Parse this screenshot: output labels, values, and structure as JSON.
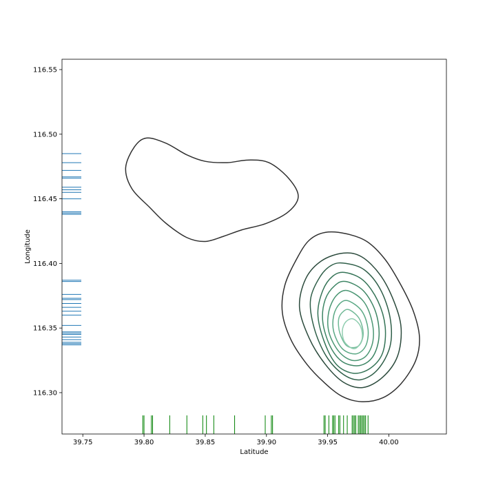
{
  "chart_data": {
    "type": "contour",
    "title": "",
    "xlabel": "Latitude",
    "ylabel": "Longitude",
    "xlim": [
      39.733,
      40.047
    ],
    "ylim": [
      116.268,
      116.558
    ],
    "xticks": [
      39.75,
      39.8,
      39.85,
      39.9,
      39.95,
      40.0
    ],
    "xtick_labels": [
      "39.75",
      "39.80",
      "39.85",
      "39.90",
      "39.95",
      "40.00"
    ],
    "yticks": [
      116.3,
      116.35,
      116.4,
      116.45,
      116.5,
      116.55
    ],
    "ytick_labels": [
      "116.30",
      "116.35",
      "116.40",
      "116.45",
      "116.50",
      "116.55"
    ],
    "grid": false,
    "contour_colors": [
      "#2f2f2f",
      "#2b4a3c",
      "#2e5e48",
      "#347356",
      "#3d8564",
      "#4a9673",
      "#5aa884",
      "#71b997",
      "#90cdb0"
    ],
    "contours": [
      {
        "level": 1,
        "points": [
          [
            39.802,
            116.497
          ],
          [
            39.818,
            116.493
          ],
          [
            39.835,
            116.484
          ],
          [
            39.85,
            116.479
          ],
          [
            39.868,
            116.478
          ],
          [
            39.885,
            116.48
          ],
          [
            39.902,
            116.478
          ],
          [
            39.918,
            116.466
          ],
          [
            39.926,
            116.452
          ],
          [
            39.918,
            116.44
          ],
          [
            39.9,
            116.431
          ],
          [
            39.88,
            116.426
          ],
          [
            39.865,
            116.421
          ],
          [
            39.85,
            116.417
          ],
          [
            39.835,
            116.42
          ],
          [
            39.818,
            116.431
          ],
          [
            39.805,
            116.443
          ],
          [
            39.79,
            116.458
          ],
          [
            39.785,
            116.474
          ],
          [
            39.792,
            116.49
          ]
        ]
      },
      {
        "level": 1,
        "points": [
          [
            39.948,
            116.424
          ],
          [
            39.965,
            116.423
          ],
          [
            39.982,
            116.417
          ],
          [
            39.997,
            116.403
          ],
          [
            40.01,
            116.383
          ],
          [
            40.02,
            116.363
          ],
          [
            40.025,
            116.343
          ],
          [
            40.022,
            116.325
          ],
          [
            40.01,
            116.307
          ],
          [
            39.995,
            116.296
          ],
          [
            39.978,
            116.293
          ],
          [
            39.962,
            116.297
          ],
          [
            39.947,
            116.308
          ],
          [
            39.933,
            116.322
          ],
          [
            39.92,
            116.341
          ],
          [
            39.913,
            116.362
          ],
          [
            39.915,
            116.383
          ],
          [
            39.925,
            116.404
          ],
          [
            39.935,
            116.418
          ]
        ]
      },
      {
        "level": 2,
        "points": [
          [
            39.963,
            116.408
          ],
          [
            39.978,
            116.405
          ],
          [
            39.993,
            116.391
          ],
          [
            40.004,
            116.371
          ],
          [
            40.01,
            116.35
          ],
          [
            40.007,
            116.328
          ],
          [
            39.995,
            116.312
          ],
          [
            39.979,
            116.304
          ],
          [
            39.963,
            116.308
          ],
          [
            39.948,
            116.322
          ],
          [
            39.935,
            116.342
          ],
          [
            39.927,
            116.366
          ],
          [
            39.932,
            116.388
          ],
          [
            39.945,
            116.402
          ]
        ]
      },
      {
        "level": 3,
        "points": [
          [
            39.965,
            116.4
          ],
          [
            39.98,
            116.395
          ],
          [
            39.993,
            116.38
          ],
          [
            40.001,
            116.358
          ],
          [
            40.001,
            116.336
          ],
          [
            39.991,
            116.318
          ],
          [
            39.977,
            116.31
          ],
          [
            39.963,
            116.314
          ],
          [
            39.949,
            116.328
          ],
          [
            39.939,
            116.35
          ],
          [
            39.936,
            116.372
          ],
          [
            39.944,
            116.39
          ],
          [
            39.954,
            116.399
          ]
        ]
      },
      {
        "level": 4,
        "points": [
          [
            39.964,
            116.393
          ],
          [
            39.979,
            116.387
          ],
          [
            39.991,
            116.371
          ],
          [
            39.997,
            116.351
          ],
          [
            39.995,
            116.331
          ],
          [
            39.985,
            116.319
          ],
          [
            39.971,
            116.315
          ],
          [
            39.957,
            116.322
          ],
          [
            39.947,
            116.34
          ],
          [
            39.942,
            116.361
          ],
          [
            39.946,
            116.379
          ],
          [
            39.954,
            116.39
          ]
        ]
      },
      {
        "level": 5,
        "points": [
          [
            39.965,
            116.386
          ],
          [
            39.979,
            116.379
          ],
          [
            39.989,
            116.363
          ],
          [
            39.992,
            116.344
          ],
          [
            39.987,
            116.328
          ],
          [
            39.976,
            116.321
          ],
          [
            39.962,
            116.324
          ],
          [
            39.952,
            116.336
          ],
          [
            39.946,
            116.355
          ],
          [
            39.948,
            116.372
          ],
          [
            39.956,
            116.383
          ]
        ]
      },
      {
        "level": 6,
        "points": [
          [
            39.966,
            116.379
          ],
          [
            39.979,
            116.371
          ],
          [
            39.986,
            116.356
          ],
          [
            39.987,
            116.34
          ],
          [
            39.981,
            116.328
          ],
          [
            39.97,
            116.325
          ],
          [
            39.959,
            116.332
          ],
          [
            39.951,
            116.347
          ],
          [
            39.951,
            116.363
          ],
          [
            39.957,
            116.375
          ]
        ]
      },
      {
        "level": 7,
        "points": [
          [
            39.967,
            116.371
          ],
          [
            39.978,
            116.363
          ],
          [
            39.983,
            116.349
          ],
          [
            39.981,
            116.336
          ],
          [
            39.973,
            116.33
          ],
          [
            39.962,
            116.334
          ],
          [
            39.955,
            116.347
          ],
          [
            39.955,
            116.36
          ],
          [
            39.96,
            116.369
          ]
        ]
      },
      {
        "level": 8,
        "points": [
          [
            39.968,
            116.364
          ],
          [
            39.976,
            116.357
          ],
          [
            39.979,
            116.345
          ],
          [
            39.975,
            116.336
          ],
          [
            39.966,
            116.336
          ],
          [
            39.96,
            116.346
          ],
          [
            39.959,
            116.357
          ],
          [
            39.963,
            116.363
          ]
        ]
      },
      {
        "level": 9,
        "points": [
          [
            39.971,
            116.357
          ],
          [
            39.977,
            116.351
          ],
          [
            39.978,
            116.341
          ],
          [
            39.972,
            116.334
          ],
          [
            39.964,
            116.339
          ],
          [
            39.962,
            116.348
          ],
          [
            39.965,
            116.355
          ]
        ]
      }
    ],
    "rug_x": {
      "color": "#008000",
      "values": [
        39.799,
        39.8,
        39.806,
        39.807,
        39.821,
        39.835,
        39.848,
        39.851,
        39.857,
        39.874,
        39.899,
        39.904,
        39.905,
        39.947,
        39.948,
        39.951,
        39.954,
        39.955,
        39.956,
        39.959,
        39.96,
        39.963,
        39.966,
        39.97,
        39.971,
        39.972,
        39.973,
        39.975,
        39.976,
        39.977,
        39.978,
        39.979,
        39.98,
        39.981,
        39.983
      ]
    },
    "rug_y": {
      "color": "#1f77b4",
      "values": [
        116.485,
        116.478,
        116.472,
        116.467,
        116.466,
        116.459,
        116.457,
        116.455,
        116.45,
        116.44,
        116.439,
        116.438,
        116.387,
        116.386,
        116.376,
        116.373,
        116.372,
        116.369,
        116.366,
        116.363,
        116.36,
        116.352,
        116.347,
        116.346,
        116.345,
        116.343,
        116.341,
        116.339,
        116.338,
        116.337
      ]
    }
  }
}
